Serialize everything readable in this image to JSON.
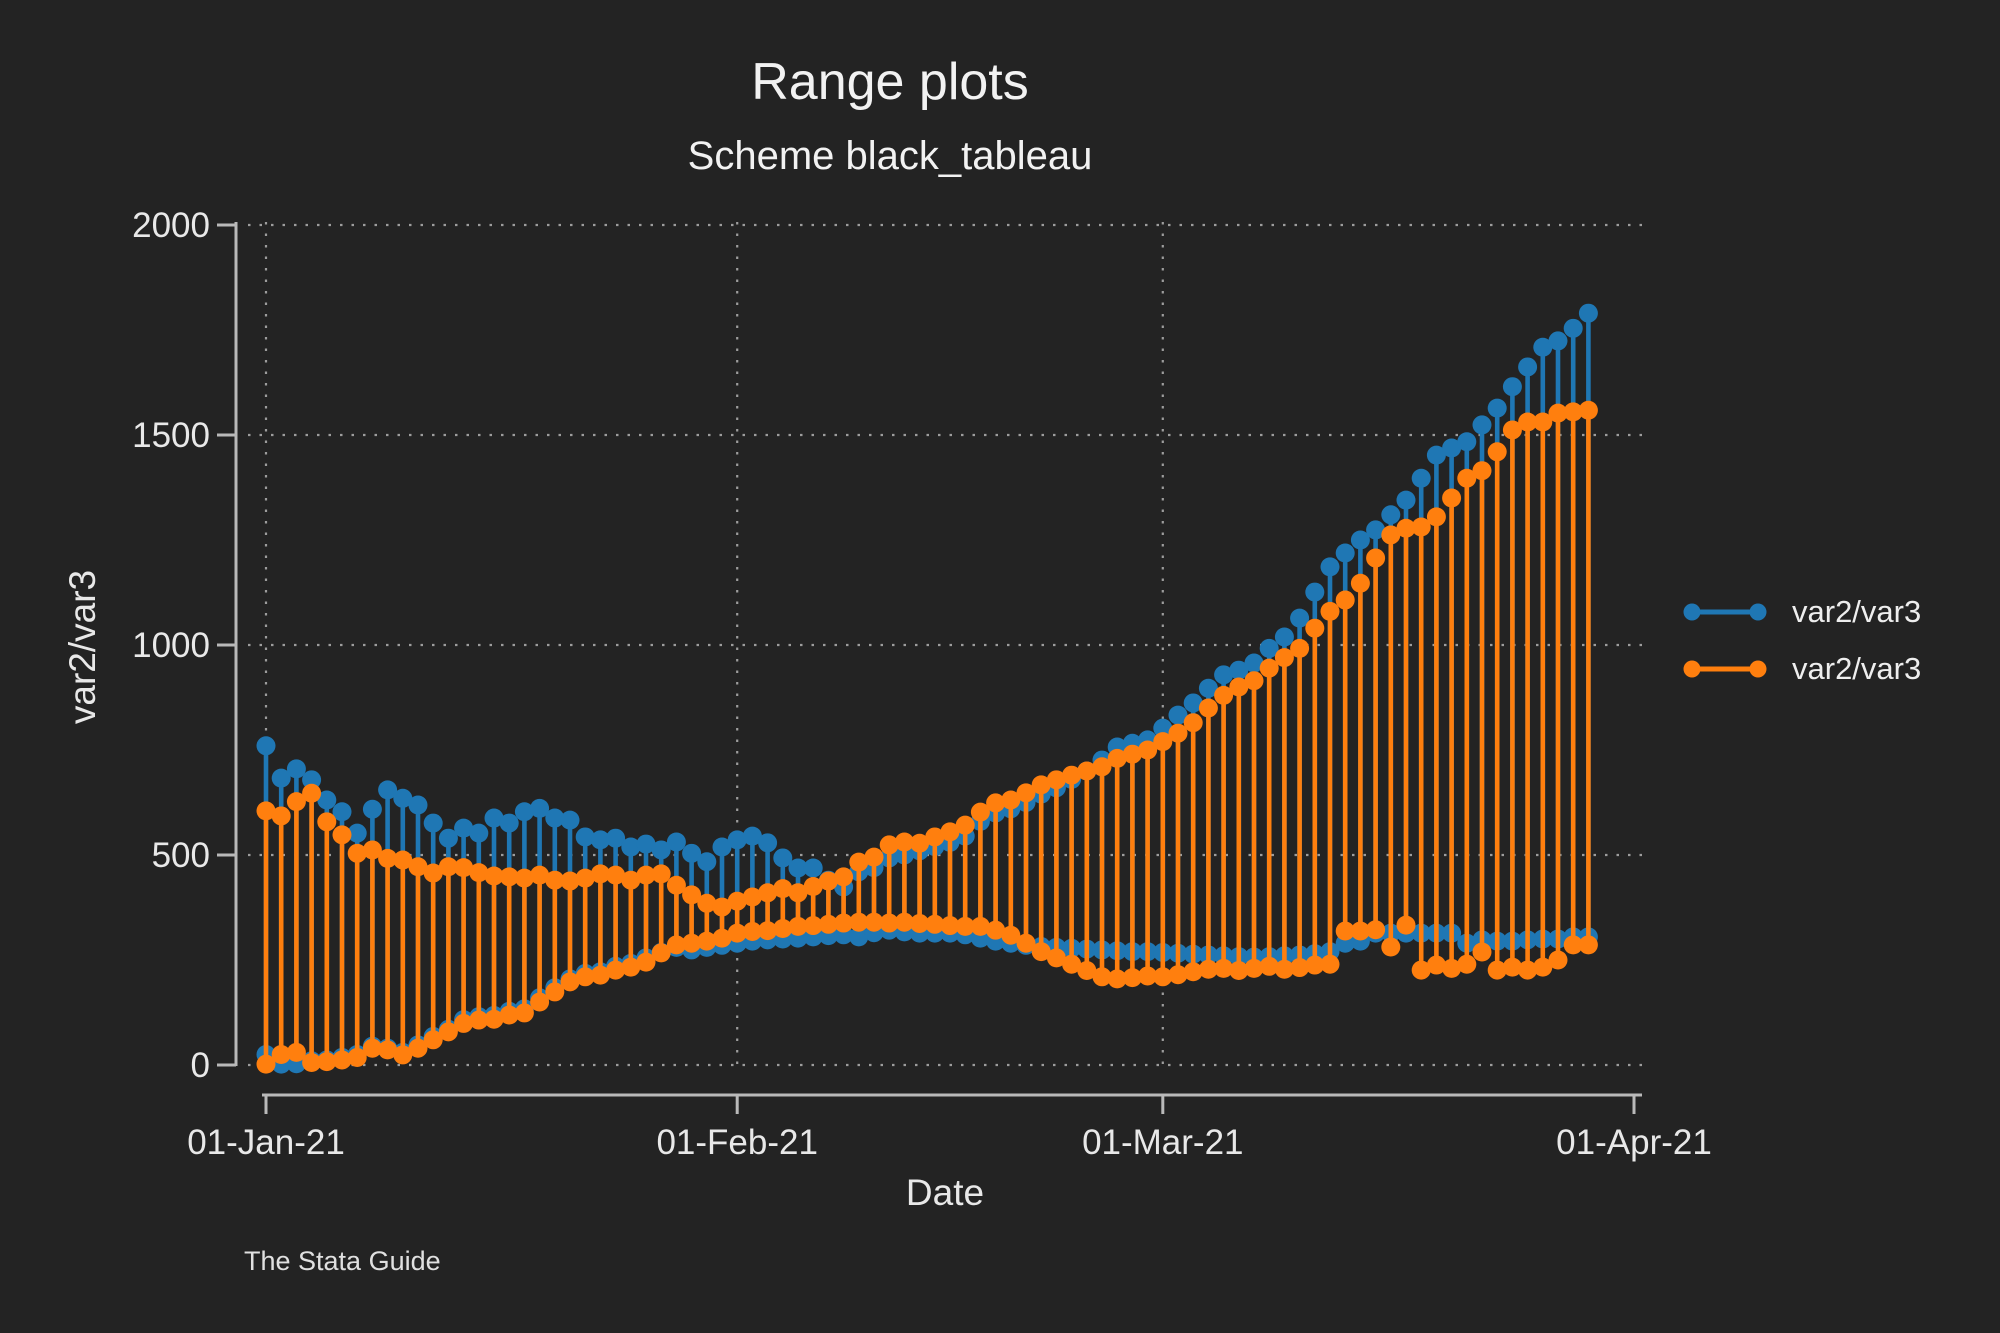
{
  "title": "Range plots",
  "subtitle": "Scheme black_tableau",
  "footer": "The Stata Guide",
  "x_axis": {
    "label": "Date",
    "ticks": [
      {
        "label": "01-Jan-21",
        "day": 0
      },
      {
        "label": "01-Feb-21",
        "day": 31
      },
      {
        "label": "01-Mar-21",
        "day": 59
      },
      {
        "label": "01-Apr-21",
        "day": 90
      }
    ]
  },
  "y_axis": {
    "label": "var2/var3",
    "ticks": [
      0,
      500,
      1000,
      1500,
      2000
    ]
  },
  "legend": [
    {
      "label": "var2/var3",
      "color": "#1f77b4"
    },
    {
      "label": "var2/var3",
      "color": "#ff7f0e"
    }
  ],
  "colors": {
    "background": "#232323",
    "axis": "#b9b9b9",
    "grid": "#9d9d9d",
    "text": "#e8e8e8",
    "blue": "#1f77b4",
    "orange": "#ff7f0e"
  },
  "chart_data": {
    "type": "range-spike",
    "title": "Range plots",
    "subtitle": "Scheme black_tableau",
    "xlabel": "Date",
    "ylabel": "var2/var3",
    "x_start_label": "01-Jan-21",
    "x_unit": "day",
    "n_points": 88,
    "xlim_days": [
      0,
      90
    ],
    "ylim": [
      0,
      2000
    ],
    "grid": true,
    "legend_position": "right",
    "x_gridline_days": [
      0,
      31,
      59
    ],
    "y_gridline_values": [
      0,
      500,
      1000,
      1500,
      2000
    ],
    "series": [
      {
        "name": "var2/var3",
        "color": "#1f77b4",
        "high": [
          760,
          683,
          705,
          679,
          631,
          603,
          552,
          609,
          655,
          635,
          619,
          576,
          540,
          564,
          552,
          588,
          576,
          603,
          611,
          588,
          583,
          543,
          536,
          540,
          519,
          526,
          512,
          531,
          504,
          484,
          519,
          536,
          545,
          529,
          493,
          469,
          469,
          440,
          424,
          460,
          470,
          493,
          500,
          510,
          520,
          530,
          545,
          580,
          600,
          610,
          625,
          645,
          660,
          680,
          700,
          726,
          757,
          766,
          774,
          802,
          833,
          862,
          897,
          929,
          940,
          957,
          992,
          1019,
          1064,
          1126,
          1186,
          1219,
          1250,
          1274,
          1310,
          1345,
          1397,
          1452,
          1469,
          1484,
          1524,
          1564,
          1615,
          1662,
          1709,
          1724,
          1754,
          1790
        ],
        "low": [
          25,
          2,
          3,
          10,
          12,
          18,
          25,
          45,
          40,
          30,
          48,
          68,
          85,
          108,
          115,
          118,
          128,
          134,
          160,
          184,
          205,
          218,
          222,
          235,
          242,
          255,
          268,
          280,
          274,
          280,
          285,
          290,
          295,
          298,
          300,
          302,
          305,
          308,
          310,
          305,
          315,
          321,
          317,
          314,
          314,
          314,
          310,
          302,
          295,
          290,
          285,
          282,
          280,
          278,
          276,
          274,
          272,
          270,
          270,
          268,
          266,
          264,
          262,
          260,
          258,
          257,
          258,
          260,
          262,
          265,
          270,
          290,
          295,
          314,
          314,
          314,
          314,
          314,
          314,
          290,
          298,
          295,
          295,
          298,
          300,
          300,
          305,
          305
        ]
      },
      {
        "name": "var2/var3",
        "color": "#ff7f0e",
        "high": [
          605,
          593,
          627,
          647,
          579,
          548,
          504,
          512,
          492,
          488,
          472,
          457,
          472,
          470,
          458,
          450,
          448,
          445,
          452,
          440,
          438,
          445,
          455,
          452,
          440,
          452,
          455,
          428,
          405,
          385,
          376,
          390,
          400,
          410,
          420,
          410,
          425,
          438,
          448,
          483,
          495,
          524,
          531,
          528,
          543,
          555,
          571,
          602,
          624,
          631,
          648,
          667,
          679,
          690,
          700,
          710,
          730,
          740,
          750,
          770,
          790,
          815,
          850,
          880,
          900,
          915,
          945,
          970,
          992,
          1040,
          1080,
          1107,
          1147,
          1207,
          1262,
          1278,
          1281,
          1305,
          1350,
          1397,
          1415,
          1460,
          1512,
          1531,
          1531,
          1552,
          1555,
          1559
        ],
        "low": [
          2,
          25,
          30,
          6,
          8,
          12,
          18,
          40,
          36,
          24,
          40,
          60,
          79,
          99,
          107,
          109,
          119,
          124,
          150,
          174,
          198,
          210,
          214,
          226,
          233,
          245,
          267,
          286,
          290,
          295,
          302,
          314,
          318,
          320,
          325,
          330,
          332,
          335,
          338,
          340,
          340,
          338,
          340,
          337,
          335,
          332,
          330,
          330,
          321,
          309,
          290,
          270,
          255,
          240,
          225,
          210,
          205,
          208,
          212,
          210,
          215,
          222,
          228,
          230,
          225,
          230,
          235,
          228,
          232,
          238,
          240,
          319,
          319,
          322,
          281,
          333,
          226,
          238,
          230,
          240,
          269,
          226,
          233,
          226,
          233,
          250,
          286,
          286
        ]
      }
    ]
  }
}
